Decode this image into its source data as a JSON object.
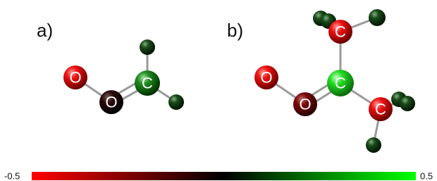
{
  "panels": [
    {
      "label": "a)",
      "atoms": [
        "O",
        "O",
        "C"
      ]
    },
    {
      "label": "b)",
      "atoms": [
        "O",
        "O",
        "C",
        "C",
        "C"
      ]
    }
  ],
  "colorbar": {
    "min_label": "-0.5",
    "max_label": "0.5"
  }
}
